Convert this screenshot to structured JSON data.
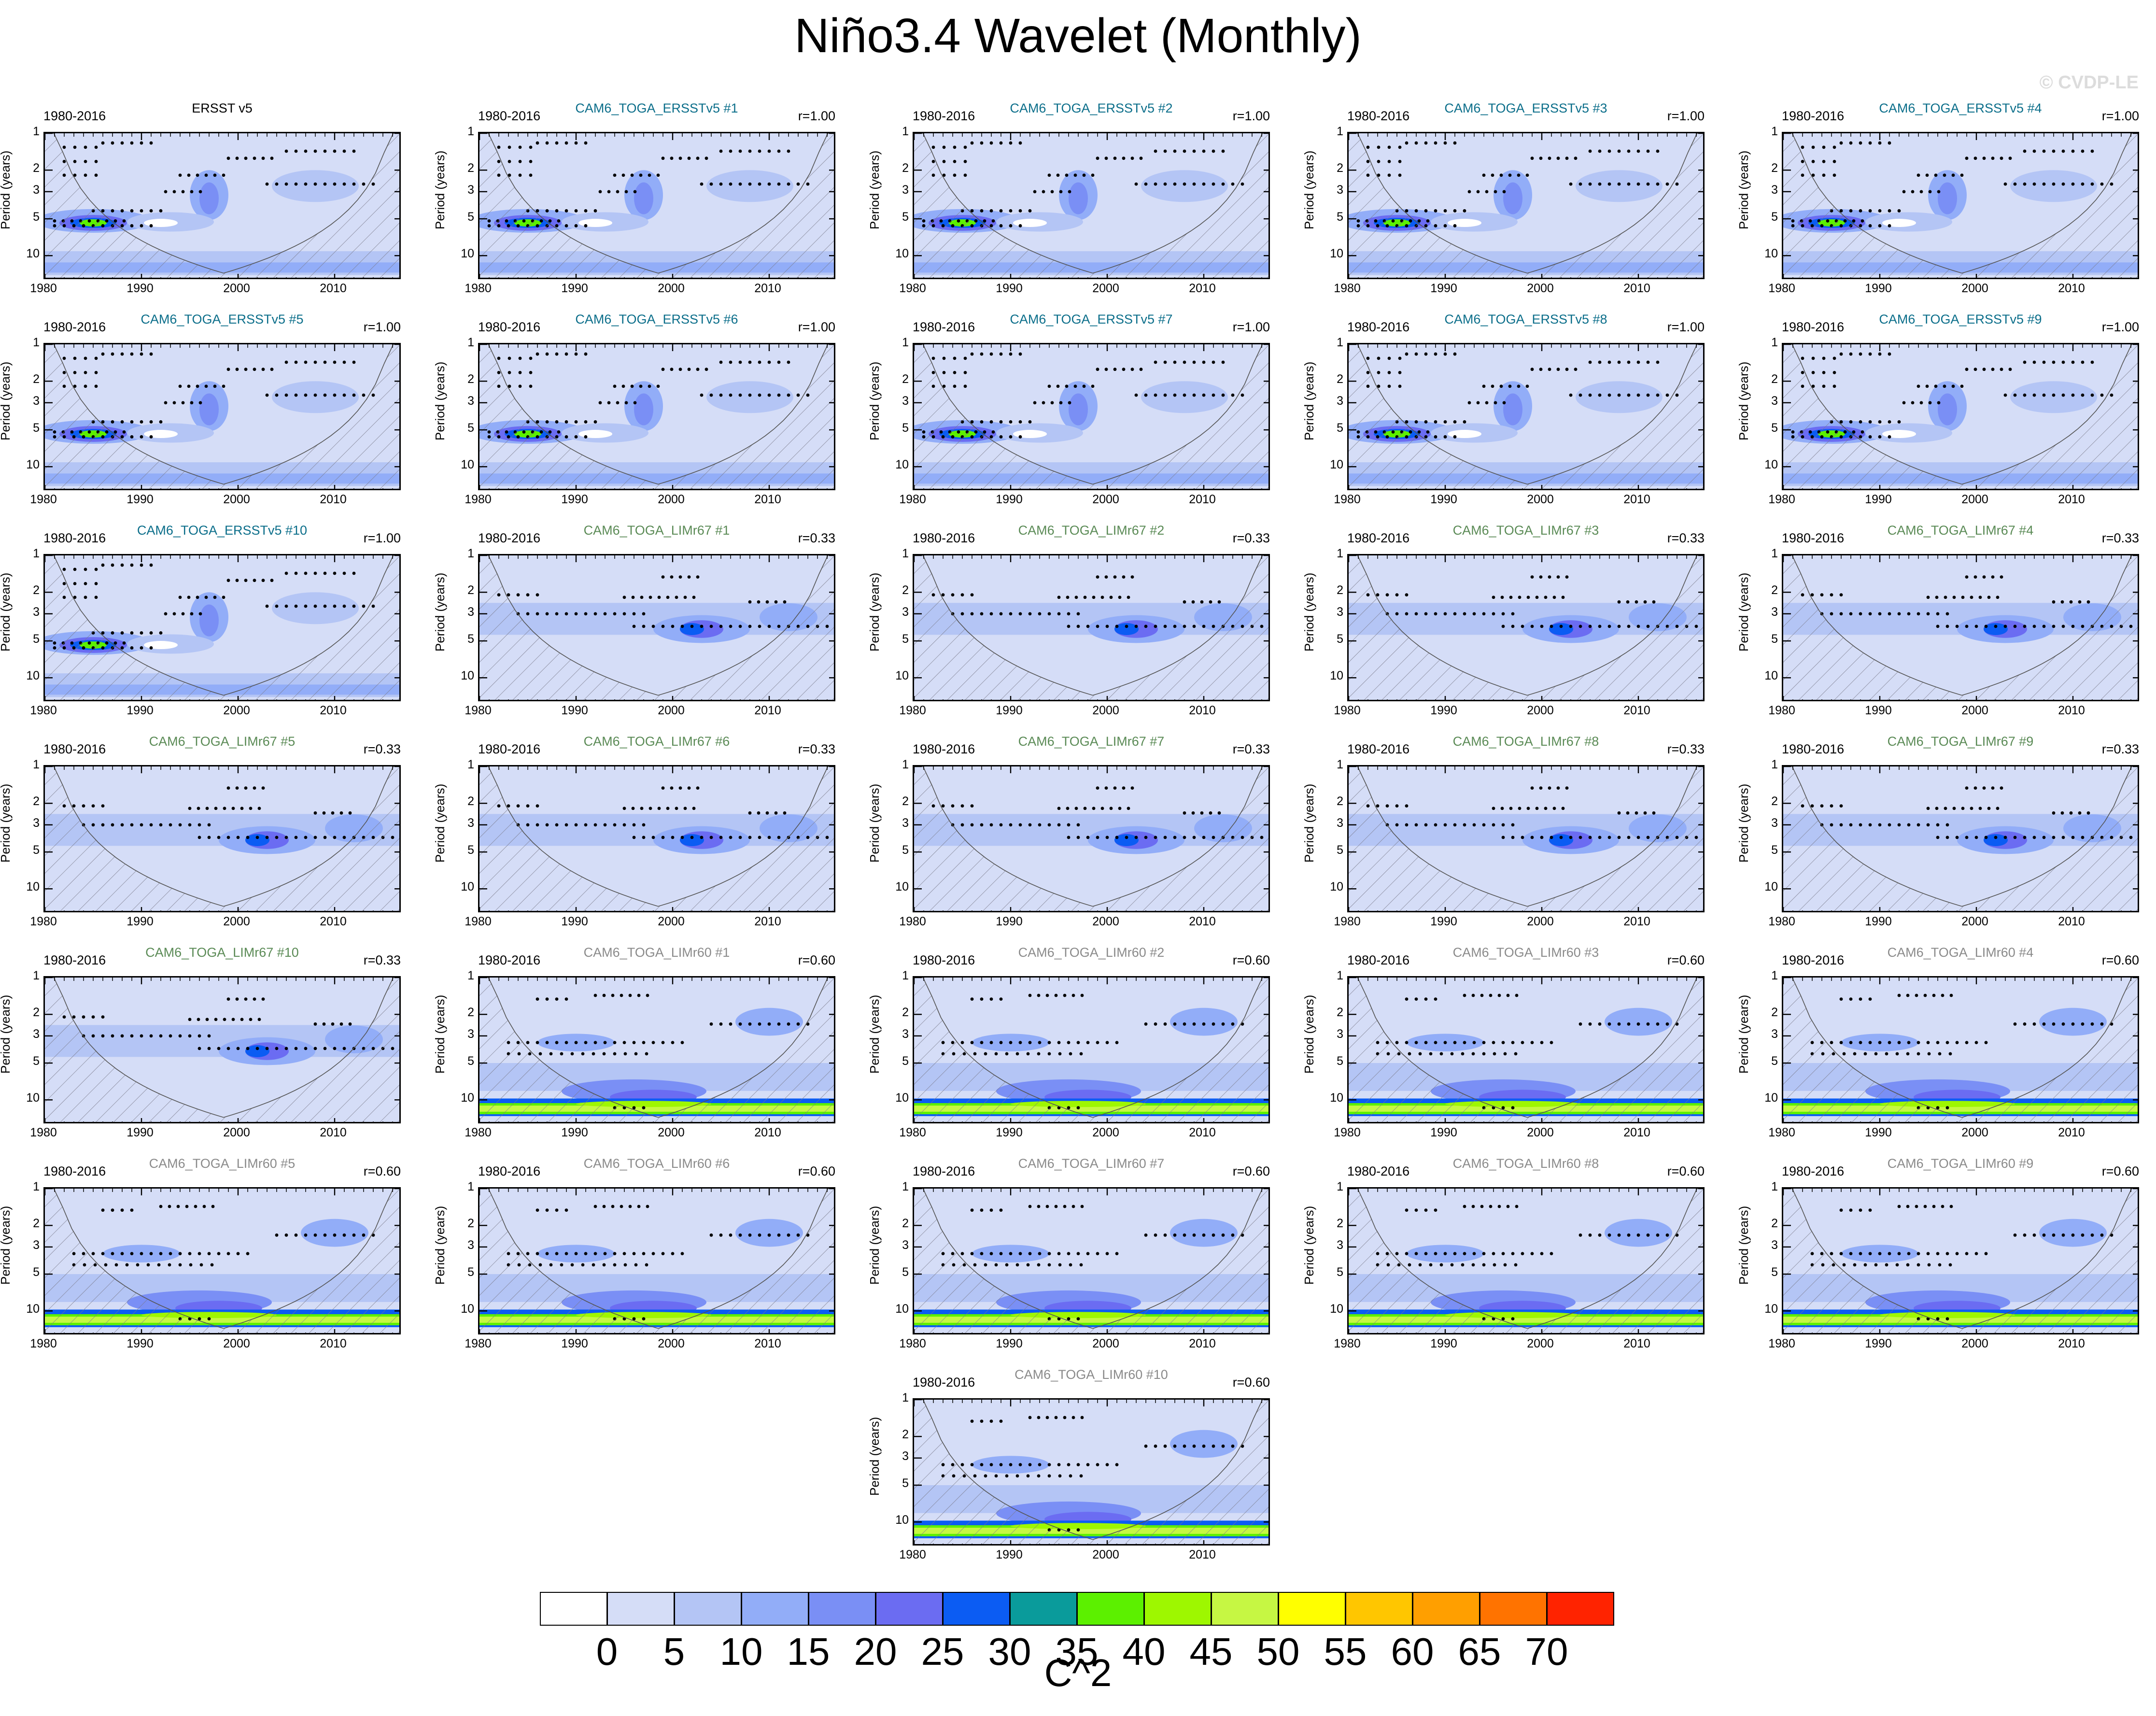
{
  "title": "Niño3.4 Wavelet (Monthly)",
  "watermark": "© CVDP-LE",
  "colors": {
    "ERSSTv5": "#000000",
    "TOGA_ERSSTv5": "#0b6e8a",
    "TOGA_LIMr67": "#5a8a55",
    "TOGA_LIMr60": "#8a8a8a"
  },
  "chart_data": {
    "type": "heatmap",
    "common": {
      "time_range": "1980-2016",
      "ylabel": "Period (years)",
      "yticks": [
        "1",
        "2",
        "3",
        "5",
        "10"
      ],
      "xticks": [
        "1980",
        "1990",
        "2000",
        "2010"
      ],
      "xlim": [
        1980,
        2017
      ],
      "ylim": [
        1,
        16
      ],
      "yscale": "log",
      "stipple": "significant",
      "hatch": "cone of influence"
    },
    "panels": [
      {
        "label": "ERSST v5",
        "r": "",
        "group": "ERSSTv5"
      },
      {
        "label": "CAM6_TOGA_ERSSTv5 #1",
        "r": "r=1.00",
        "group": "TOGA_ERSSTv5"
      },
      {
        "label": "CAM6_TOGA_ERSSTv5 #2",
        "r": "r=1.00",
        "group": "TOGA_ERSSTv5"
      },
      {
        "label": "CAM6_TOGA_ERSSTv5 #3",
        "r": "r=1.00",
        "group": "TOGA_ERSSTv5"
      },
      {
        "label": "CAM6_TOGA_ERSSTv5 #4",
        "r": "r=1.00",
        "group": "TOGA_ERSSTv5"
      },
      {
        "label": "CAM6_TOGA_ERSSTv5 #5",
        "r": "r=1.00",
        "group": "TOGA_ERSSTv5"
      },
      {
        "label": "CAM6_TOGA_ERSSTv5 #6",
        "r": "r=1.00",
        "group": "TOGA_ERSSTv5"
      },
      {
        "label": "CAM6_TOGA_ERSSTv5 #7",
        "r": "r=1.00",
        "group": "TOGA_ERSSTv5"
      },
      {
        "label": "CAM6_TOGA_ERSSTv5 #8",
        "r": "r=1.00",
        "group": "TOGA_ERSSTv5"
      },
      {
        "label": "CAM6_TOGA_ERSSTv5 #9",
        "r": "r=1.00",
        "group": "TOGA_ERSSTv5"
      },
      {
        "label": "CAM6_TOGA_ERSSTv5 #10",
        "r": "r=1.00",
        "group": "TOGA_ERSSTv5"
      },
      {
        "label": "CAM6_TOGA_LIMr67 #1",
        "r": "r=0.33",
        "group": "TOGA_LIMr67"
      },
      {
        "label": "CAM6_TOGA_LIMr67 #2",
        "r": "r=0.33",
        "group": "TOGA_LIMr67"
      },
      {
        "label": "CAM6_TOGA_LIMr67 #3",
        "r": "r=0.33",
        "group": "TOGA_LIMr67"
      },
      {
        "label": "CAM6_TOGA_LIMr67 #4",
        "r": "r=0.33",
        "group": "TOGA_LIMr67"
      },
      {
        "label": "CAM6_TOGA_LIMr67 #5",
        "r": "r=0.33",
        "group": "TOGA_LIMr67"
      },
      {
        "label": "CAM6_TOGA_LIMr67 #6",
        "r": "r=0.33",
        "group": "TOGA_LIMr67"
      },
      {
        "label": "CAM6_TOGA_LIMr67 #7",
        "r": "r=0.33",
        "group": "TOGA_LIMr67"
      },
      {
        "label": "CAM6_TOGA_LIMr67 #8",
        "r": "r=0.33",
        "group": "TOGA_LIMr67"
      },
      {
        "label": "CAM6_TOGA_LIMr67 #9",
        "r": "r=0.33",
        "group": "TOGA_LIMr67"
      },
      {
        "label": "CAM6_TOGA_LIMr67 #10",
        "r": "r=0.33",
        "group": "TOGA_LIMr67"
      },
      {
        "label": "CAM6_TOGA_LIMr60 #1",
        "r": "r=0.60",
        "group": "TOGA_LIMr60"
      },
      {
        "label": "CAM6_TOGA_LIMr60 #2",
        "r": "r=0.60",
        "group": "TOGA_LIMr60"
      },
      {
        "label": "CAM6_TOGA_LIMr60 #3",
        "r": "r=0.60",
        "group": "TOGA_LIMr60"
      },
      {
        "label": "CAM6_TOGA_LIMr60 #4",
        "r": "r=0.60",
        "group": "TOGA_LIMr60"
      },
      {
        "label": "CAM6_TOGA_LIMr60 #5",
        "r": "r=0.60",
        "group": "TOGA_LIMr60"
      },
      {
        "label": "CAM6_TOGA_LIMr60 #6",
        "r": "r=0.60",
        "group": "TOGA_LIMr60"
      },
      {
        "label": "CAM6_TOGA_LIMr60 #7",
        "r": "r=0.60",
        "group": "TOGA_LIMr60"
      },
      {
        "label": "CAM6_TOGA_LIMr60 #8",
        "r": "r=0.60",
        "group": "TOGA_LIMr60"
      },
      {
        "label": "CAM6_TOGA_LIMr60 #9",
        "r": "r=0.60",
        "group": "TOGA_LIMr60"
      },
      {
        "label": "CAM6_TOGA_LIMr60 #10",
        "r": "r=0.60",
        "group": "TOGA_LIMr60"
      }
    ],
    "colorbar": {
      "levels": [
        "0",
        "5",
        "10",
        "15",
        "20",
        "25",
        "30",
        "35",
        "40",
        "45",
        "50",
        "55",
        "60",
        "65",
        "70"
      ],
      "colors": [
        "#ffffff",
        "#d5ddf7",
        "#b4c5f5",
        "#92adf8",
        "#7a8ff5",
        "#6b6cf2",
        "#0b5cf3",
        "#0a9b9b",
        "#5cf000",
        "#9ef700",
        "#c6f743",
        "#ffff00",
        "#ffc600",
        "#ff9f00",
        "#ff7300",
        "#ff2300"
      ],
      "units": "C^2"
    }
  }
}
